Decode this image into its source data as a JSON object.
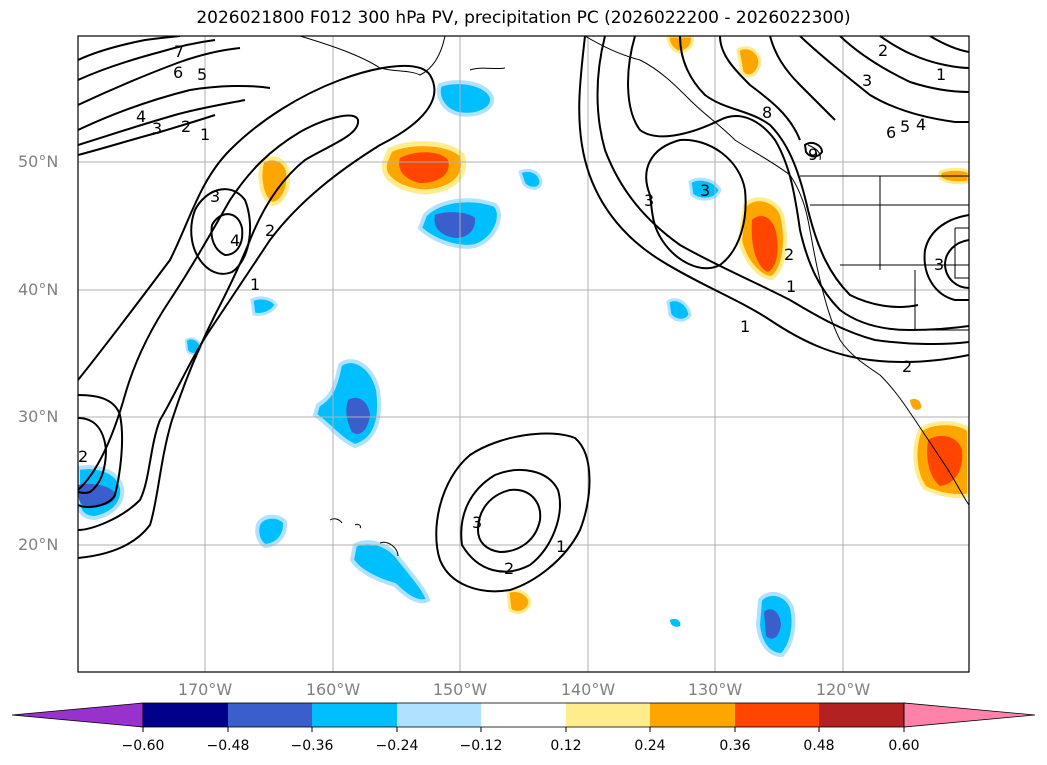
{
  "title": "2026021800 F012 300 hPa PV, precipitation PC (2026022200 - 2026022300)",
  "lat_labels": [
    "50°N",
    "40°N",
    "30°N",
    "20°N"
  ],
  "lon_labels": [
    "170°W",
    "160°W",
    "150°W",
    "140°W",
    "130°W",
    "120°W"
  ],
  "colorbar": {
    "ticks": [
      "−0.60",
      "−0.48",
      "−0.36",
      "−0.24",
      "−0.12",
      "0.12",
      "0.24",
      "0.36",
      "0.48",
      "0.60"
    ],
    "colors": [
      "#9932cc",
      "#00008b",
      "#3a5fcd",
      "#00bfff",
      "#b0e2ff",
      "#ffffff",
      "#ffec8b",
      "#ffa500",
      "#ff4500",
      "#b22222",
      "#ff82ab"
    ]
  },
  "contour_labels": [
    "7",
    "6",
    "5",
    "4",
    "3",
    "2",
    "1",
    "3",
    "2",
    "4",
    "1",
    "2",
    "3",
    "1",
    "2",
    "8",
    "9",
    "3",
    "6",
    "5",
    "4",
    "2",
    "1",
    "3",
    "3",
    "2",
    "1",
    "3",
    "2",
    "1"
  ],
  "colors": {
    "contour": "#000000",
    "grid": "#b0b0b0",
    "frame": "#000000"
  }
}
